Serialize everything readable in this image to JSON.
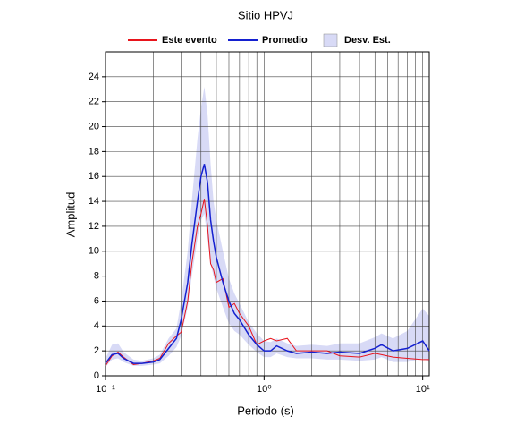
{
  "chart_data": {
    "type": "line",
    "title": "Sitio HPVJ",
    "x_label": "Periodo (s)",
    "y_label": "Amplitud",
    "x_log": true,
    "grid": true,
    "xlim": [
      0.1,
      11
    ],
    "ylim": [
      0,
      26
    ],
    "xticks": [
      {
        "value": 0.1,
        "label": "10⁻¹"
      },
      {
        "value": 1,
        "label": "10⁰"
      },
      {
        "value": 10,
        "label": "10¹"
      }
    ],
    "x_minor_ticks": [
      0.2,
      0.3,
      0.4,
      0.5,
      0.6,
      0.7,
      0.8,
      0.9,
      2,
      3,
      4,
      5,
      6,
      7,
      8,
      9
    ],
    "yticks": [
      0,
      2,
      4,
      6,
      8,
      10,
      12,
      14,
      16,
      18,
      20,
      22,
      24
    ],
    "x": [
      0.1,
      0.11,
      0.12,
      0.13,
      0.15,
      0.17,
      0.2,
      0.22,
      0.25,
      0.28,
      0.3,
      0.33,
      0.35,
      0.38,
      0.4,
      0.42,
      0.44,
      0.46,
      0.48,
      0.5,
      0.55,
      0.6,
      0.65,
      0.7,
      0.8,
      0.9,
      1.0,
      1.1,
      1.2,
      1.4,
      1.6,
      2.0,
      2.5,
      3.0,
      4.0,
      5.0,
      5.5,
      6.5,
      8.0,
      10,
      11
    ],
    "band": {
      "name": "Desv. Est.",
      "color": "#d8daf6",
      "lower": [
        0.7,
        1.3,
        1.4,
        1.1,
        0.8,
        0.8,
        0.9,
        1.0,
        1.6,
        2.3,
        3.2,
        5.5,
        8,
        11,
        12.5,
        13,
        11,
        9,
        8,
        7,
        5.5,
        4.2,
        3.6,
        3.3,
        2.5,
        1.9,
        1.5,
        1.5,
        1.8,
        1.5,
        1.4,
        1.4,
        1.3,
        1.3,
        1.2,
        1.3,
        1.5,
        1.1,
        1.1,
        1.4,
        1.1
      ],
      "upper": [
        1.4,
        2.5,
        2.6,
        1.9,
        1.3,
        1.2,
        1.4,
        1.7,
        3.0,
        3.8,
        6.0,
        10,
        14,
        19,
        21.5,
        23.2,
        21,
        17,
        14,
        12.5,
        10,
        7.8,
        6.6,
        5.8,
        4.3,
        3.4,
        2.8,
        2.7,
        3.0,
        2.6,
        2.4,
        2.5,
        2.4,
        2.6,
        2.6,
        3.1,
        3.4,
        3.0,
        3.6,
        5.4,
        4.8
      ]
    },
    "series": [
      {
        "name": "Este evento",
        "color": "#e8141c",
        "values": [
          0.8,
          1.6,
          1.9,
          1.5,
          0.9,
          1.0,
          1.2,
          1.4,
          2.6,
          3.2,
          3.5,
          6.0,
          9.0,
          12,
          13,
          14.2,
          12,
          9,
          8.5,
          7.5,
          7.8,
          5.5,
          5.8,
          5.0,
          4.0,
          2.5,
          2.8,
          3.0,
          2.8,
          3.0,
          2.0,
          2.0,
          2.0,
          1.6,
          1.5,
          1.8,
          1.7,
          1.5,
          1.4,
          1.3,
          1.3
        ]
      },
      {
        "name": "Promedio",
        "color": "#1420d0",
        "values": [
          1.0,
          1.7,
          1.8,
          1.4,
          1.0,
          1.0,
          1.1,
          1.3,
          2.2,
          3.0,
          4.5,
          7.5,
          10.5,
          14,
          16,
          17,
          15.5,
          12.5,
          10.8,
          9.5,
          7.5,
          6.0,
          5.0,
          4.5,
          3.3,
          2.5,
          2.0,
          2.0,
          2.4,
          2.0,
          1.8,
          1.9,
          1.8,
          1.9,
          1.8,
          2.2,
          2.5,
          2.0,
          2.2,
          2.8,
          2.0
        ]
      }
    ]
  }
}
